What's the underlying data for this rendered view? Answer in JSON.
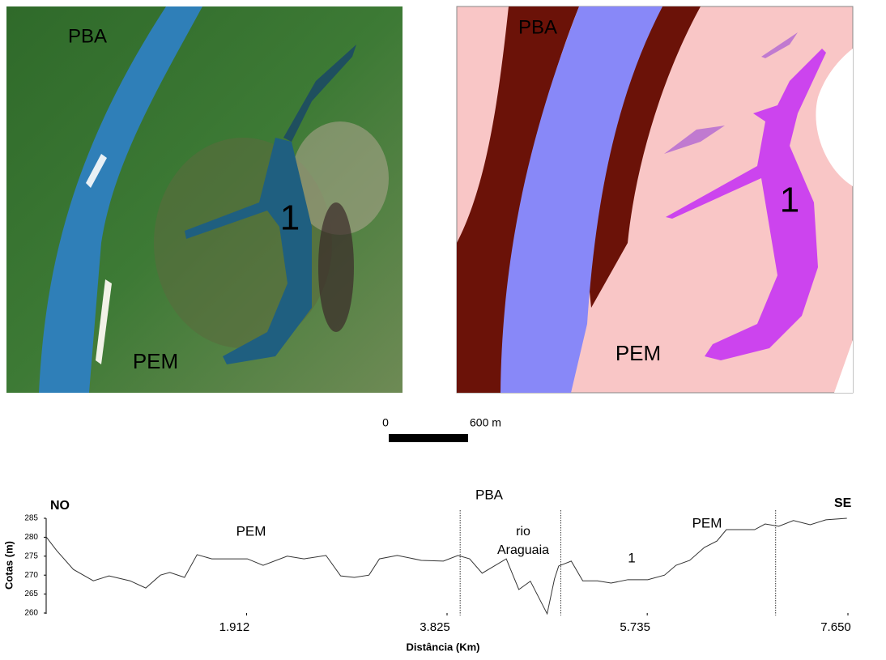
{
  "maps": [
    {
      "labels": [
        "PBA",
        "1",
        "PEM"
      ]
    },
    {
      "labels": [
        "PBA",
        "1",
        "PEM"
      ]
    }
  ],
  "scale_bar": {
    "start": "0",
    "end": "600 m"
  },
  "chart_data": {
    "type": "line",
    "xlabel": "Distância (Km)",
    "ylabel": "Cotas (m)",
    "annotations": [
      "NO",
      "SE",
      "PBA",
      "PEM",
      "rio",
      "Araguaia",
      "1",
      "PEM"
    ],
    "dividers": [
      3.95,
      4.91,
      6.96
    ],
    "x": [
      0,
      0.1,
      0.26,
      0.45,
      0.6,
      0.8,
      0.95,
      1.09,
      1.18,
      1.32,
      1.44,
      1.58,
      1.92,
      2.07,
      2.3,
      2.46,
      2.67,
      2.81,
      2.94,
      3.08,
      3.18,
      3.35,
      3.58,
      3.79,
      3.93,
      4.04,
      4.16,
      4.39,
      4.51,
      4.62,
      4.78,
      4.85,
      4.89,
      5.01,
      5.12,
      5.26,
      5.39,
      5.55,
      5.74,
      5.9,
      6.01,
      6.14,
      6.28,
      6.4,
      6.49,
      6.76,
      6.86,
      6.99,
      7.13,
      7.29,
      7.44,
      7.64
    ],
    "values": [
      280.1,
      276.5,
      271.5,
      268.5,
      269.8,
      268.5,
      266.6,
      270,
      270.7,
      269.4,
      275.4,
      274.3,
      274.3,
      272.6,
      275,
      274.3,
      275.2,
      269.8,
      269.4,
      270,
      274.3,
      275.2,
      273.9,
      273.7,
      275.2,
      274.3,
      270.5,
      274.3,
      266.2,
      268.4,
      259.8,
      269,
      272.4,
      273.7,
      268.5,
      268.5,
      267.9,
      268.8,
      268.8,
      270,
      272.6,
      273.9,
      277.3,
      279,
      282,
      282,
      283.5,
      282.9,
      284.4,
      283.3,
      284.6,
      285
    ],
    "color": "#333333",
    "xlim": [
      0,
      7.65
    ],
    "xticks": [
      1.912,
      3.825,
      5.735,
      {
        "value": 7.65,
        "label": "7.650"
      }
    ],
    "ylim": [
      260,
      285
    ],
    "yticks": [
      260,
      265,
      270,
      275,
      280,
      285
    ]
  }
}
